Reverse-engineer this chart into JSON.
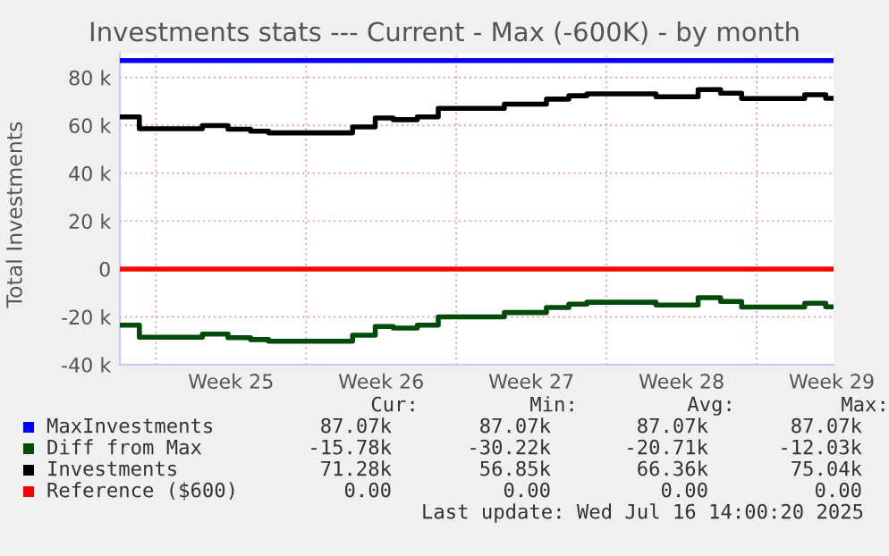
{
  "chart_data": {
    "type": "step",
    "title": "Investments stats --- Current - Max (-600K) - by month",
    "ylabel": "Total Investments",
    "xlim": [
      "2025-06-13T07:40",
      "2025-07-16T14:00"
    ],
    "ylim": [
      -40000,
      90000
    ],
    "xticks": [
      {
        "value": "2025-06-15T00:00",
        "label": null
      },
      {
        "value": "2025-06-18T12:00",
        "label": "Week 25"
      },
      {
        "value": "2025-06-22T00:00",
        "label": null
      },
      {
        "value": "2025-06-25T12:00",
        "label": "Week 26"
      },
      {
        "value": "2025-06-29T00:00",
        "label": null
      },
      {
        "value": "2025-07-02T12:00",
        "label": "Week 27"
      },
      {
        "value": "2025-07-06T00:00",
        "label": null
      },
      {
        "value": "2025-07-09T12:00",
        "label": "Week 28"
      },
      {
        "value": "2025-07-13T00:00",
        "label": null
      },
      {
        "value": "2025-07-16T12:00",
        "label": "Week 29"
      }
    ],
    "yticks": [
      {
        "value": -40000,
        "label": "-40 k"
      },
      {
        "value": -20000,
        "label": "-20 k"
      },
      {
        "value": 0,
        "label": "0"
      },
      {
        "value": 20000,
        "label": "20 k"
      },
      {
        "value": 40000,
        "label": "40 k"
      },
      {
        "value": 60000,
        "label": "60 k"
      },
      {
        "value": 80000,
        "label": "80 k"
      }
    ],
    "grid": true,
    "legend": "bottom left",
    "series": [
      {
        "name": "MaxInvestments",
        "color": "#0000ff",
        "x": [
          "2025-06-13T07:40",
          "2025-07-16T14:00"
        ],
        "values": [
          87100,
          87100
        ]
      },
      {
        "name": "Diff from Max",
        "color": "#004a0a",
        "x": [
          "2025-06-13T07:40",
          "2025-06-14T05:30",
          "2025-06-17T04:00",
          "2025-06-18T08:40",
          "2025-06-19T09:50",
          "2025-06-20T06:00",
          "2025-06-24T04:00",
          "2025-06-25T05:20",
          "2025-06-26T01:30",
          "2025-06-27T04:20",
          "2025-06-28T03:50",
          "2025-07-01T05:45",
          "2025-07-03T04:50",
          "2025-07-04T06:00",
          "2025-07-05T02:10",
          "2025-07-08T07:25",
          "2025-07-10T06:30",
          "2025-07-11T07:40",
          "2025-07-12T07:10",
          "2025-07-15T05:45",
          "2025-07-16T05:15",
          "2025-07-16T14:00"
        ],
        "values": [
          -23500,
          -28500,
          -27200,
          -28700,
          -29500,
          -30200,
          -27700,
          -24000,
          -24700,
          -23500,
          -20000,
          -18200,
          -16100,
          -14700,
          -13900,
          -15100,
          -12000,
          -13600,
          -15900,
          -14300,
          -15800,
          -15800
        ]
      },
      {
        "name": "Investments",
        "color": "#000000",
        "x": [
          "2025-06-13T07:40",
          "2025-06-14T05:30",
          "2025-06-17T04:00",
          "2025-06-18T08:40",
          "2025-06-19T09:50",
          "2025-06-20T06:00",
          "2025-06-24T04:00",
          "2025-06-25T05:20",
          "2025-06-26T01:30",
          "2025-06-27T04:20",
          "2025-06-28T03:50",
          "2025-07-01T05:45",
          "2025-07-03T04:50",
          "2025-07-04T06:00",
          "2025-07-05T02:10",
          "2025-07-08T07:25",
          "2025-07-10T06:30",
          "2025-07-11T07:40",
          "2025-07-12T07:10",
          "2025-07-15T05:45",
          "2025-07-16T05:15",
          "2025-07-16T14:00"
        ],
        "values": [
          63600,
          58600,
          59900,
          58400,
          57600,
          56900,
          59400,
          63100,
          62400,
          63600,
          67100,
          68900,
          71000,
          72400,
          73200,
          72000,
          75000,
          73500,
          71200,
          72800,
          71300,
          71300
        ]
      },
      {
        "name": "Reference ($600)",
        "color": "#ff0000",
        "x": [
          "2025-06-13T07:40",
          "2025-07-16T14:00"
        ],
        "values": [
          0,
          0
        ]
      }
    ],
    "annotations": [
      "Cur:",
      "Min:",
      "Avg:",
      "Max:",
      "87.07k",
      "87.07k",
      "87.07k",
      "87.07k",
      "-15.78k",
      "-30.22k",
      "-20.71k",
      "-12.03k",
      "71.28k",
      "56.85k",
      "66.36k",
      "75.04k",
      "0.00",
      "0.00",
      "0.00",
      "0.00",
      "Last update: Wed Jul 16 14:00:20 2025"
    ]
  }
}
